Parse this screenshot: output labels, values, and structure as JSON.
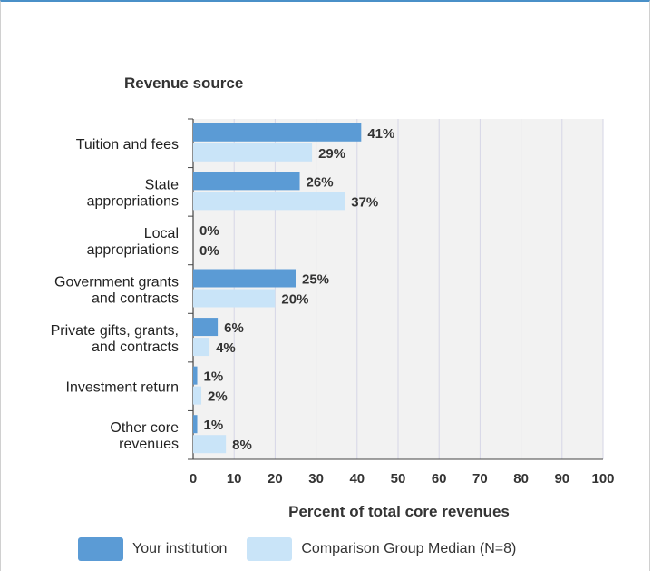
{
  "chart_data": {
    "type": "bar",
    "orientation": "horizontal",
    "title": "Revenue source",
    "xlabel": "Percent of total core revenues",
    "xlim": [
      0,
      100
    ],
    "xticks": [
      0,
      10,
      20,
      30,
      40,
      50,
      60,
      70,
      80,
      90,
      100
    ],
    "grid": true,
    "legend_position": "bottom",
    "categories": [
      [
        "Tuition and fees"
      ],
      [
        "State",
        "appropriations"
      ],
      [
        "Local",
        "appropriations"
      ],
      [
        "Government grants",
        "and contracts"
      ],
      [
        "Private gifts, grants,",
        "and contracts"
      ],
      [
        "Investment return"
      ],
      [
        "Other core",
        "revenues"
      ]
    ],
    "series": [
      {
        "name": "Your institution",
        "color": "#5b9bd5",
        "values": [
          41,
          26,
          0,
          25,
          6,
          1,
          1
        ],
        "labels": [
          "41%",
          "26%",
          "0%",
          "25%",
          "6%",
          "1%",
          "1%"
        ]
      },
      {
        "name": "Comparison Group Median (N=8)",
        "color": "#c9e4f8",
        "values": [
          29,
          37,
          0,
          20,
          4,
          2,
          8
        ],
        "labels": [
          "29%",
          "37%",
          "0%",
          "20%",
          "4%",
          "2%",
          "8%"
        ]
      }
    ]
  }
}
